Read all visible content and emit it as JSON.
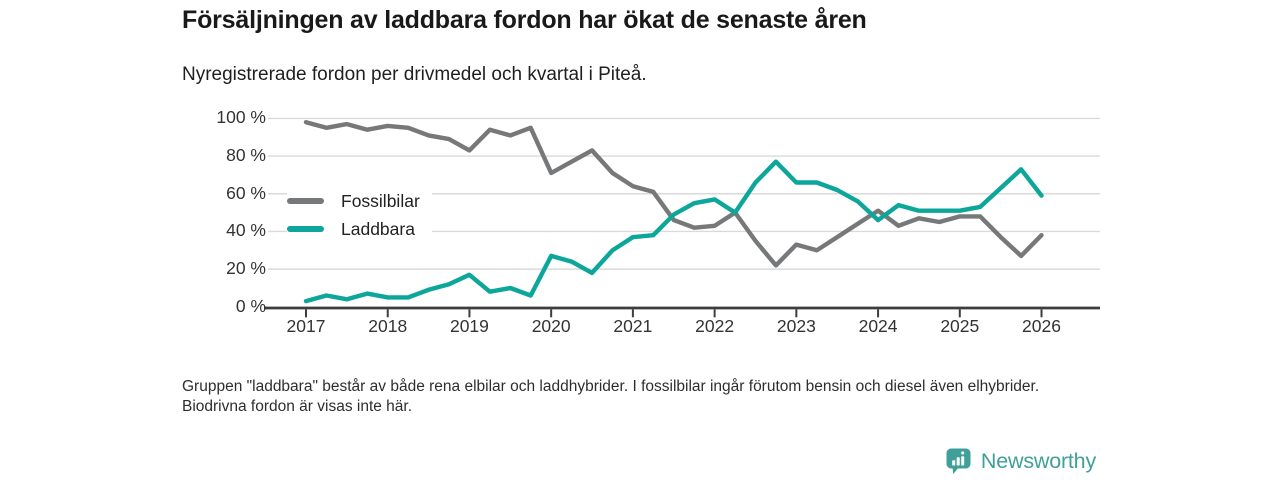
{
  "title": "Försäljningen av laddbara fordon har ökat de senaste åren",
  "subtitle": "Nyregistrerade fordon per drivmedel och kvartal i Piteå.",
  "footnote": "Gruppen \"laddbara\" består av både rena elbilar och laddhybrider. I fossilbilar ingår förutom bensin och diesel även elhybrider. Biodrivna fordon är visas inte här.",
  "logo": {
    "text": "Newsworthy",
    "icon": "bar-chart-speech-bubble-icon",
    "color": "#3fa099"
  },
  "colors": {
    "fossil_line": "#77787a",
    "laddbara_line": "#0ca69b",
    "gridline": "#dadada",
    "axis": "#3d3d3d"
  },
  "chart_data": {
    "type": "line",
    "title": "Försäljningen av laddbara fordon har ökat de senaste åren",
    "subtitle": "Nyregistrerade fordon per drivmedel och kvartal i Piteå.",
    "unit": "%",
    "ylim": [
      0,
      100
    ],
    "grid": true,
    "legend_position": "inside-left",
    "x_tick_labels": [
      "2017",
      "2018",
      "2019",
      "2020",
      "2021",
      "2022",
      "2023",
      "2024",
      "2025",
      "2026"
    ],
    "y_tick_labels": [
      "100 %",
      "80 %",
      "60 %",
      "40 %",
      "20 %",
      "0 %"
    ],
    "x": [
      "2017 Q1",
      "2017 Q2",
      "2017 Q3",
      "2017 Q4",
      "2018 Q1",
      "2018 Q2",
      "2018 Q3",
      "2018 Q4",
      "2019 Q1",
      "2019 Q2",
      "2019 Q3",
      "2019 Q4",
      "2020 Q1",
      "2020 Q2",
      "2020 Q3",
      "2020 Q4",
      "2021 Q1",
      "2021 Q2",
      "2021 Q3",
      "2021 Q4",
      "2022 Q1",
      "2022 Q2",
      "2022 Q3",
      "2022 Q4",
      "2023 Q1",
      "2023 Q2",
      "2023 Q3",
      "2023 Q4",
      "2024 Q1",
      "2024 Q2",
      "2024 Q3",
      "2024 Q4",
      "2025 Q1",
      "2025 Q2",
      "2025 Q3",
      "2025 Q4",
      "2026 Q1"
    ],
    "series": [
      {
        "name": "Fossilbilar",
        "color": "#77787a",
        "values": [
          98,
          95,
          97,
          94,
          96,
          95,
          91,
          89,
          83,
          94,
          91,
          95,
          71,
          77,
          83,
          71,
          64,
          61,
          46,
          42,
          43,
          50,
          35,
          22,
          33,
          30,
          37,
          44,
          51,
          43,
          47,
          45,
          48,
          48,
          37,
          27,
          38
        ]
      },
      {
        "name": "Laddbara",
        "color": "#0ca69b",
        "values": [
          3,
          6,
          4,
          7,
          5,
          5,
          9,
          12,
          17,
          8,
          10,
          6,
          27,
          24,
          18,
          30,
          37,
          38,
          49,
          55,
          57,
          50,
          66,
          77,
          66,
          66,
          62,
          56,
          46,
          54,
          51,
          51,
          51,
          53,
          63,
          73,
          59
        ]
      }
    ]
  }
}
